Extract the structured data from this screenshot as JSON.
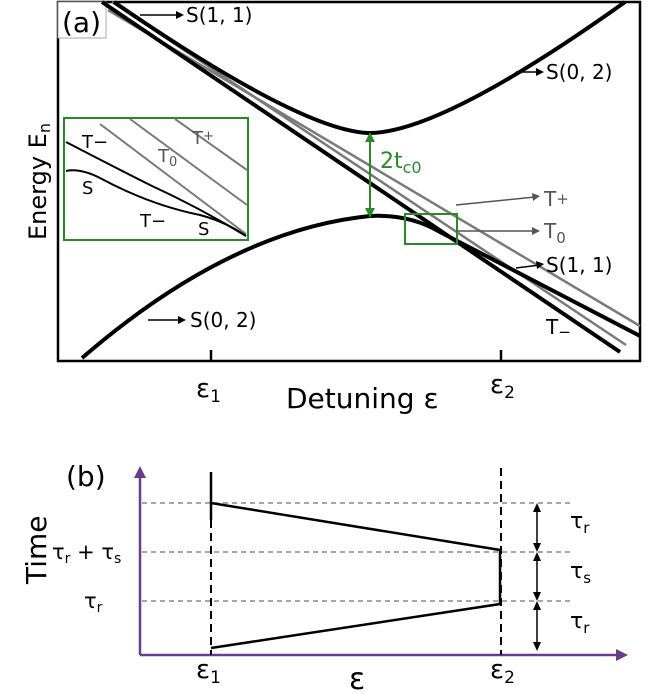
{
  "panel_a": {
    "label": "(a)",
    "ylabel": "Energy E",
    "ylabel_sub": "n",
    "xlabel": "Detuning ε",
    "ticks": [
      {
        "base": "ε",
        "sub": "1"
      },
      {
        "base": "ε",
        "sub": "2"
      }
    ],
    "curve_labels": {
      "s11_top": "S(1, 1)",
      "s02_top": "S(0, 2)",
      "t_plus": "T",
      "t_plus_sup": "+",
      "t_zero": "T",
      "t_zero_sub": "0",
      "s11_right": "S(1, 1)",
      "t_minus": "T",
      "t_minus_sup": "−",
      "s02_bottom": "S(0, 2)"
    },
    "gap_label": "2t",
    "gap_label_sub": "c0",
    "inset_labels": {
      "t_minus_top": "T−",
      "t_zero": "T",
      "t_zero_sub": "0",
      "t_plus": "T",
      "t_plus_sup": "+",
      "s_left": "S",
      "t_minus_bottom": "T−",
      "s_right": "S"
    },
    "colors": {
      "black": "#000000",
      "grey": "#7a7a7a",
      "green": "#2a8a2a"
    }
  },
  "panel_b": {
    "label": "(b)",
    "ylabel": "Time",
    "xlabel": "ε",
    "ticks": [
      {
        "base": "ε",
        "sub": "1"
      },
      {
        "base": "ε",
        "sub": "2"
      }
    ],
    "y_ticks": [
      {
        "base": "τ",
        "sub": "r",
        "suffix": " + τ",
        "suffix_sub": "s"
      },
      {
        "base": "τ",
        "sub": "r"
      }
    ],
    "intervals": [
      {
        "base": "τ",
        "sub": "r"
      },
      {
        "base": "τ",
        "sub": "s"
      },
      {
        "base": "τ",
        "sub": "r"
      }
    ],
    "colors": {
      "axis": "#6b3c8c",
      "dashed": "#888888"
    }
  }
}
